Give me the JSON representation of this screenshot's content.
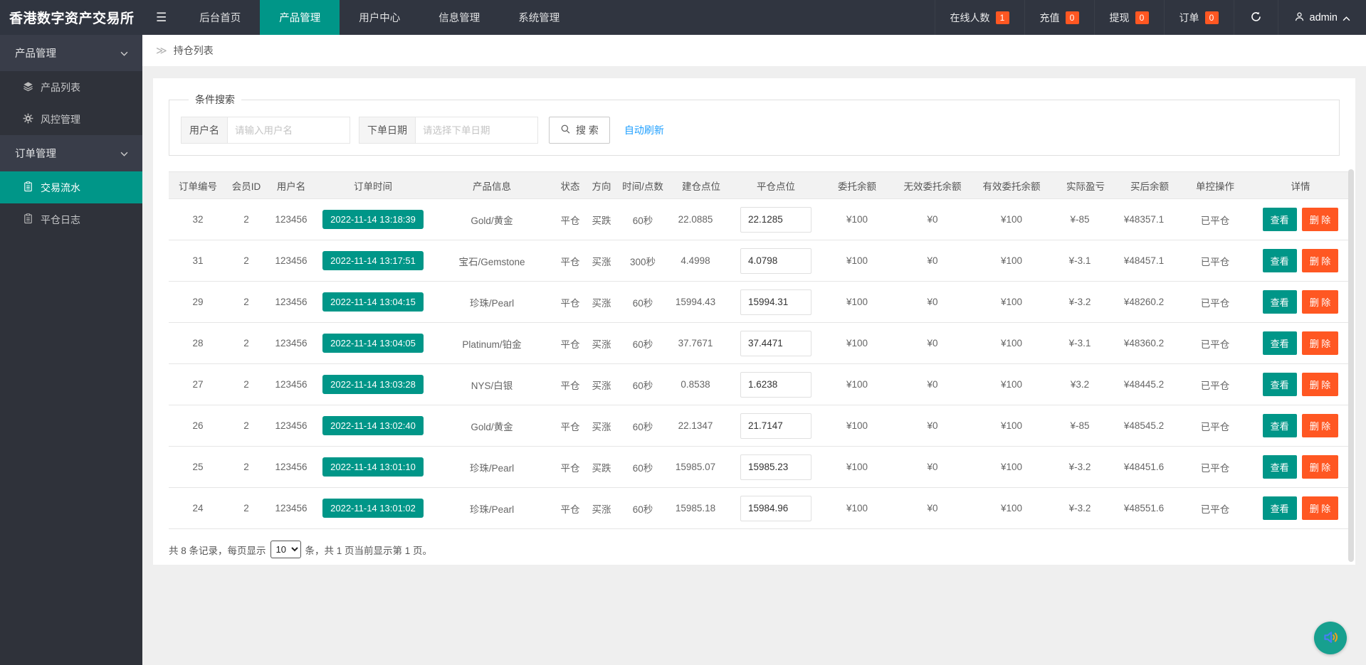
{
  "app": {
    "title": "香港数字资产交易所"
  },
  "topbar": {
    "menu": [
      {
        "label": "后台首页",
        "active": false
      },
      {
        "label": "产品管理",
        "active": true
      },
      {
        "label": "用户中心",
        "active": false
      },
      {
        "label": "信息管理",
        "active": false
      },
      {
        "label": "系统管理",
        "active": false
      }
    ],
    "stats": [
      {
        "label": "在线人数",
        "count": "1"
      },
      {
        "label": "充值",
        "count": "0"
      },
      {
        "label": "提现",
        "count": "0"
      },
      {
        "label": "订单",
        "count": "0"
      }
    ],
    "username": "admin"
  },
  "sidebar": {
    "sections": [
      {
        "title": "产品管理",
        "items": [
          {
            "label": "产品列表",
            "icon": "layers-icon",
            "active": false
          },
          {
            "label": "风控管理",
            "icon": "gear-icon",
            "active": false
          }
        ]
      },
      {
        "title": "订单管理",
        "items": [
          {
            "label": "交易流水",
            "icon": "document-icon",
            "active": true
          },
          {
            "label": "平仓日志",
            "icon": "clipboard-icon",
            "active": false
          }
        ]
      }
    ]
  },
  "breadcrumb": {
    "title": "持仓列表"
  },
  "search": {
    "legend": "条件搜索",
    "username_label": "用户名",
    "username_placeholder": "请输入用户名",
    "date_label": "下单日期",
    "date_placeholder": "请选择下单日期",
    "search_button": "搜 索",
    "auto_refresh": "自动刷新"
  },
  "table": {
    "headers": [
      "订单编号",
      "会员ID",
      "用户名",
      "订单时间",
      "产品信息",
      "状态",
      "方向",
      "时间/点数",
      "建仓点位",
      "平仓点位",
      "委托余额",
      "无效委托余额",
      "有效委托余额",
      "实际盈亏",
      "买后余额",
      "单控操作",
      "详情"
    ],
    "actions": {
      "view": "查看",
      "delete": "删 除"
    },
    "rows": [
      {
        "order_id": "32",
        "member_id": "2",
        "username": "123456",
        "order_time": "2022-11-14 13:18:39",
        "product": "Gold/黄金",
        "status": "平仓",
        "direction": "买跌",
        "direction_color": "green",
        "time_points": "60秒",
        "open_point": "22.0885",
        "close_point": "22.1285",
        "entrust_balance": "¥100",
        "invalid_entrust": "¥0",
        "valid_entrust": "¥100",
        "profit": "¥-85",
        "profit_color": "green",
        "balance_after": "¥48357.1",
        "control_status": "已平仓"
      },
      {
        "order_id": "31",
        "member_id": "2",
        "username": "123456",
        "order_time": "2022-11-14 13:17:51",
        "product": "宝石/Gemstone",
        "status": "平仓",
        "direction": "买涨",
        "direction_color": "red",
        "time_points": "300秒",
        "open_point": "4.4998",
        "close_point": "4.0798",
        "entrust_balance": "¥100",
        "invalid_entrust": "¥0",
        "valid_entrust": "¥100",
        "profit": "¥-3.1",
        "profit_color": "green",
        "balance_after": "¥48457.1",
        "control_status": "已平仓"
      },
      {
        "order_id": "29",
        "member_id": "2",
        "username": "123456",
        "order_time": "2022-11-14 13:04:15",
        "product": "珍珠/Pearl",
        "status": "平仓",
        "direction": "买涨",
        "direction_color": "red",
        "time_points": "60秒",
        "open_point": "15994.43",
        "close_point": "15994.31",
        "entrust_balance": "¥100",
        "invalid_entrust": "¥0",
        "valid_entrust": "¥100",
        "profit": "¥-3.2",
        "profit_color": "green",
        "balance_after": "¥48260.2",
        "control_status": "已平仓"
      },
      {
        "order_id": "28",
        "member_id": "2",
        "username": "123456",
        "order_time": "2022-11-14 13:04:05",
        "product": "Platinum/铂金",
        "status": "平仓",
        "direction": "买涨",
        "direction_color": "red",
        "time_points": "60秒",
        "open_point": "37.7671",
        "close_point": "37.4471",
        "entrust_balance": "¥100",
        "invalid_entrust": "¥0",
        "valid_entrust": "¥100",
        "profit": "¥-3.1",
        "profit_color": "green",
        "balance_after": "¥48360.2",
        "control_status": "已平仓"
      },
      {
        "order_id": "27",
        "member_id": "2",
        "username": "123456",
        "order_time": "2022-11-14 13:03:28",
        "product": "NYS/白银",
        "status": "平仓",
        "direction": "买涨",
        "direction_color": "red",
        "time_points": "60秒",
        "open_point": "0.8538",
        "close_point": "1.6238",
        "entrust_balance": "¥100",
        "invalid_entrust": "¥0",
        "valid_entrust": "¥100",
        "profit": "¥3.2",
        "profit_color": "red",
        "balance_after": "¥48445.2",
        "control_status": "已平仓"
      },
      {
        "order_id": "26",
        "member_id": "2",
        "username": "123456",
        "order_time": "2022-11-14 13:02:40",
        "product": "Gold/黄金",
        "status": "平仓",
        "direction": "买涨",
        "direction_color": "red",
        "time_points": "60秒",
        "open_point": "22.1347",
        "close_point": "21.7147",
        "entrust_balance": "¥100",
        "invalid_entrust": "¥0",
        "valid_entrust": "¥100",
        "profit": "¥-85",
        "profit_color": "green",
        "balance_after": "¥48545.2",
        "control_status": "已平仓"
      },
      {
        "order_id": "25",
        "member_id": "2",
        "username": "123456",
        "order_time": "2022-11-14 13:01:10",
        "product": "珍珠/Pearl",
        "status": "平仓",
        "direction": "买跌",
        "direction_color": "green",
        "time_points": "60秒",
        "open_point": "15985.07",
        "close_point": "15985.23",
        "entrust_balance": "¥100",
        "invalid_entrust": "¥0",
        "valid_entrust": "¥100",
        "profit": "¥-3.2",
        "profit_color": "green",
        "balance_after": "¥48451.6",
        "control_status": "已平仓"
      },
      {
        "order_id": "24",
        "member_id": "2",
        "username": "123456",
        "order_time": "2022-11-14 13:01:02",
        "product": "珍珠/Pearl",
        "status": "平仓",
        "direction": "买涨",
        "direction_color": "red",
        "time_points": "60秒",
        "open_point": "15985.18",
        "close_point": "15984.96",
        "entrust_balance": "¥100",
        "invalid_entrust": "¥0",
        "valid_entrust": "¥100",
        "profit": "¥-3.2",
        "profit_color": "green",
        "balance_after": "¥48551.6",
        "control_status": "已平仓"
      }
    ]
  },
  "pagination": {
    "prefix": "共 8 条记录，每页显示",
    "page_size": "10",
    "suffix": "条，共 1 页当前显示第 1 页。"
  },
  "colors": {
    "teal": "#009688",
    "orange": "#FF5722",
    "link_blue": "#1E9FFF",
    "red": "#ff0000",
    "green": "#009900"
  }
}
